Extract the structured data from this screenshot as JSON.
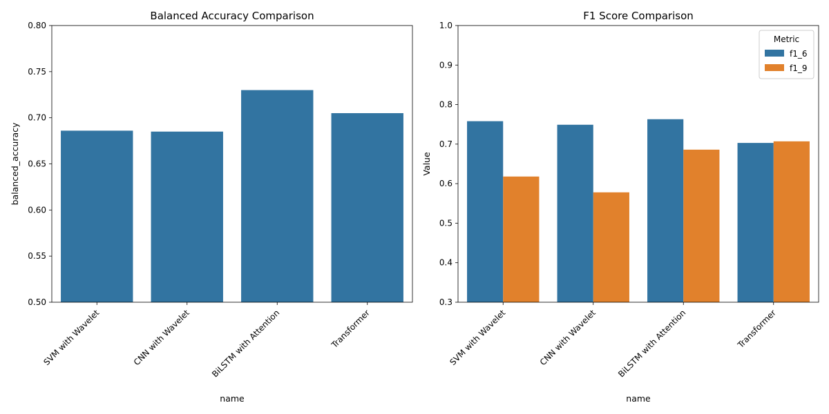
{
  "chart_data": [
    {
      "type": "bar",
      "title": "Balanced Accuracy Comparison",
      "xlabel": "name",
      "ylabel": "balanced_accuracy",
      "categories": [
        "SVM with Wavelet",
        "CNN with Wavelet",
        "BiLSTM with Attention",
        "Transformer"
      ],
      "series": [
        {
          "values": [
            0.686,
            0.685,
            0.73,
            0.705
          ],
          "color": "#3274a1"
        }
      ],
      "ylim": [
        0.5,
        0.8
      ],
      "yticks": [
        "0.50",
        "0.55",
        "0.60",
        "0.65",
        "0.70",
        "0.75",
        "0.80"
      ],
      "grid": false,
      "legend": null
    },
    {
      "type": "bar",
      "title": "F1 Score Comparison",
      "xlabel": "name",
      "ylabel": "Value",
      "categories": [
        "SVM with Wavelet",
        "CNN with Wavelet",
        "BiLSTM with Attention",
        "Transformer"
      ],
      "series": [
        {
          "name": "f1_6",
          "values": [
            0.758,
            0.749,
            0.763,
            0.703
          ],
          "color": "#3274a1"
        },
        {
          "name": "f1_9",
          "values": [
            0.618,
            0.578,
            0.686,
            0.707
          ],
          "color": "#e1812c"
        }
      ],
      "ylim": [
        0.3,
        1.0
      ],
      "yticks": [
        "0.3",
        "0.4",
        "0.5",
        "0.6",
        "0.7",
        "0.8",
        "0.9",
        "1.0"
      ],
      "grid": false,
      "legend": {
        "title": "Metric",
        "placement": "top-right"
      }
    }
  ]
}
